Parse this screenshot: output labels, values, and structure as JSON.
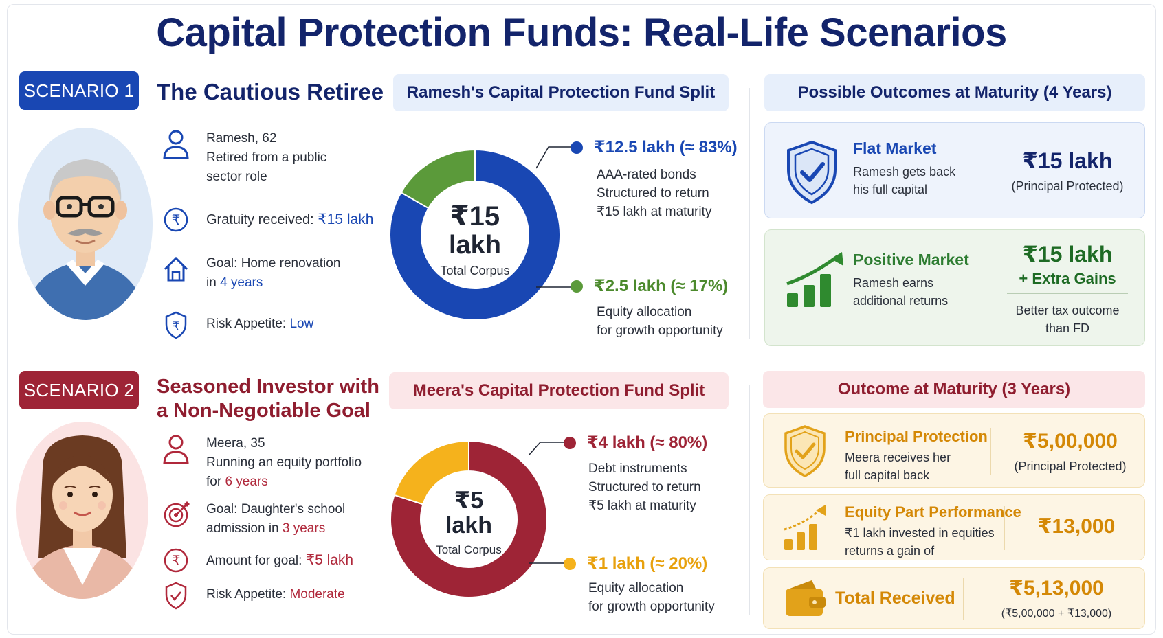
{
  "title": "Capital Protection Funds: Real-Life Scenarios",
  "colors": {
    "navy": "#13246b",
    "blue": "#1947b3",
    "green": "#5b9a3a",
    "maroon": "#9e2436",
    "amber": "#f5b21c"
  },
  "scenario1": {
    "badge": "SCENARIO 1",
    "title": "The Cautious Retiree",
    "avatar_icon": "retired-man-avatar",
    "profile": {
      "line1": "Ramesh, 62",
      "line2": "Retired from a public",
      "line3": "sector role"
    },
    "gratuity": {
      "label": "Gratuity received: ",
      "value": "₹15 lakh"
    },
    "goal": {
      "line1": "Goal: Home renovation",
      "prefix": "in ",
      "value": "4 years"
    },
    "risk": {
      "label": "Risk Appetite: ",
      "value": "Low"
    },
    "split": {
      "heading": "Ramesh's Capital Protection Fund Split",
      "center_value": "₹15",
      "center_unit": "lakh",
      "center_label": "Total Corpus",
      "segments": [
        {
          "value_text": "₹12.5 lakh (≈ 83%)",
          "share": 83.3,
          "color": "#1947b3",
          "desc": [
            "AAA-rated bonds",
            "Structured to return",
            "₹15 lakh at maturity"
          ]
        },
        {
          "value_text": "₹2.5 lakh (≈ 17%)",
          "share": 16.7,
          "color": "#5b9a3a",
          "desc": [
            "Equity allocation",
            "for growth opportunity"
          ]
        }
      ]
    },
    "outcomes": {
      "heading": "Possible Outcomes at Maturity (4 Years)",
      "flat": {
        "title": "Flat Market",
        "desc1": "Ramesh gets back",
        "desc2": "his full capital",
        "amount": "₹15 lakh",
        "sub": "(Principal Protected)",
        "icon": "shield-check-icon"
      },
      "positive": {
        "title": "Positive Market",
        "desc1": "Ramesh earns",
        "desc2": "additional returns",
        "amount": "₹15 lakh",
        "extra": "+ Extra Gains",
        "sub1": "Better tax outcome",
        "sub2": "than FD",
        "icon": "growth-chart-icon"
      }
    }
  },
  "scenario2": {
    "badge": "SCENARIO 2",
    "title_line1": "Seasoned Investor with",
    "title_line2": "a Non-Negotiable Goal",
    "avatar_icon": "woman-avatar",
    "profile": {
      "line1": "Meera, 35",
      "line2": "Running an equity portfolio",
      "prefix": "for ",
      "value": "6 years"
    },
    "goal": {
      "line1": "Goal: Daughter's school",
      "prefix": "admission in ",
      "value": "3 years"
    },
    "amount": {
      "label": "Amount for goal: ",
      "value": "₹5 lakh"
    },
    "risk": {
      "label": "Risk Appetite: ",
      "value": "Moderate"
    },
    "split": {
      "heading": "Meera's Capital Protection Fund Split",
      "center_value": "₹5",
      "center_unit": "lakh",
      "center_label": "Total Corpus",
      "segments": [
        {
          "value_text": "₹4 lakh (≈ 80%)",
          "share": 80,
          "color": "#9e2436",
          "desc": [
            "Debt instruments",
            "Structured to return",
            "₹5 lakh at maturity"
          ]
        },
        {
          "value_text": "₹1 lakh (≈ 20%)",
          "share": 20,
          "color": "#f5b21c",
          "desc": [
            "Equity allocation",
            "for growth opportunity"
          ]
        }
      ]
    },
    "outcomes": {
      "heading": "Outcome at Maturity (3 Years)",
      "principal": {
        "title": "Principal Protection",
        "desc1": "Meera receives her",
        "desc2": "full capital back",
        "amount": "₹5,00,000",
        "sub": "(Principal Protected)",
        "icon": "shield-check-icon"
      },
      "equity": {
        "title": "Equity Part Performance",
        "desc1": "₹1 lakh invested in equities",
        "desc2": "returns a gain of",
        "amount": "₹13,000",
        "icon": "growth-chart-icon"
      },
      "total": {
        "title": "Total Received",
        "amount": "₹5,13,000",
        "sub": "(₹5,00,000  +  ₹13,000)",
        "icon": "wallet-icon"
      }
    }
  }
}
